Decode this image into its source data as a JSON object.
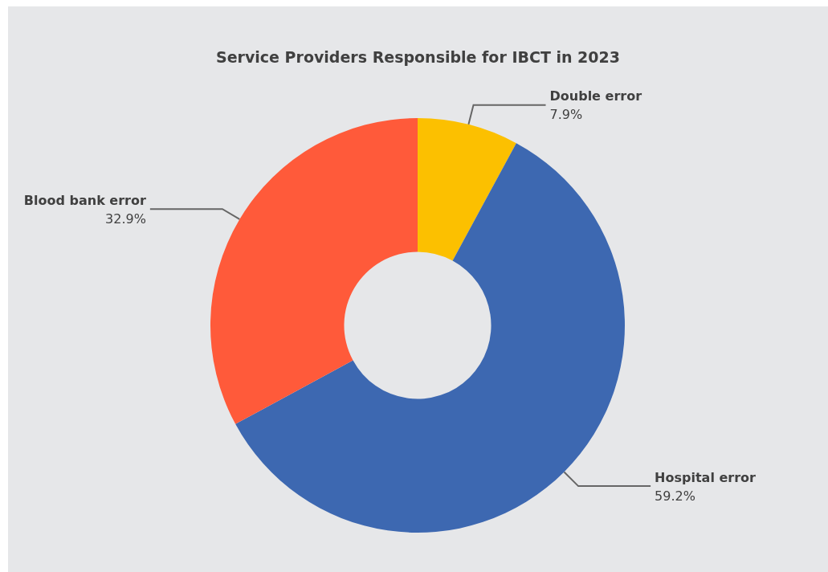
{
  "chart_data": {
    "type": "donut",
    "title": "Service Providers Responsible for IBCT in 2023",
    "categories": [
      "Double error",
      "Hospital error",
      "Blood bank error"
    ],
    "values": [
      7.9,
      59.2,
      32.9
    ],
    "value_labels": [
      "7.9%",
      "59.2%",
      "32.9%"
    ],
    "colors": [
      "#fcc000",
      "#3d68b1",
      "#ff5a3a"
    ]
  }
}
